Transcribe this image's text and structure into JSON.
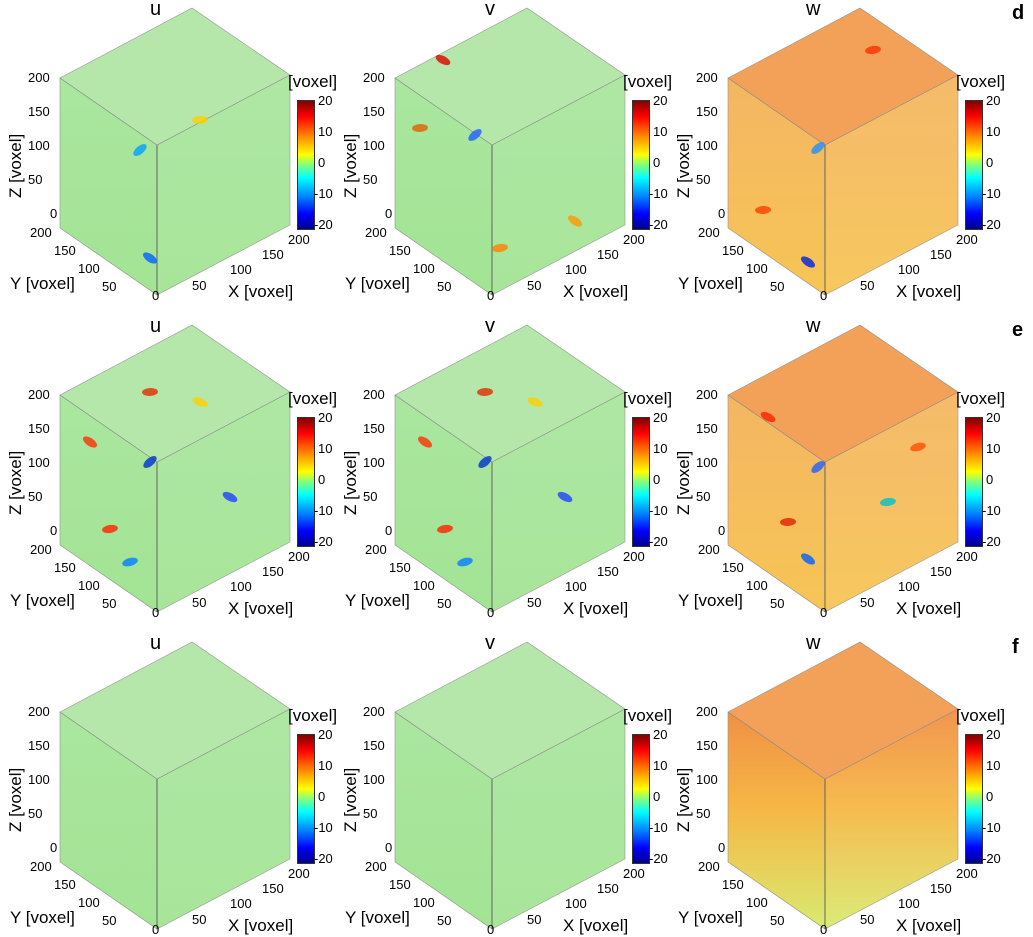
{
  "rows": [
    {
      "label": "d",
      "panels": [
        {
          "title": "u",
          "field": "uniform-low",
          "tone": "green"
        },
        {
          "title": "v",
          "field": "sparse",
          "tone": "green"
        },
        {
          "title": "w",
          "field": "sparse-warm",
          "tone": "orange"
        }
      ]
    },
    {
      "label": "e",
      "panels": [
        {
          "title": "u",
          "field": "dense",
          "tone": "green"
        },
        {
          "title": "v",
          "field": "dense",
          "tone": "green"
        },
        {
          "title": "w",
          "field": "dense-warm",
          "tone": "orange"
        }
      ]
    },
    {
      "label": "f",
      "panels": [
        {
          "title": "u",
          "field": "flat",
          "tone": "green"
        },
        {
          "title": "v",
          "field": "flat",
          "tone": "green"
        },
        {
          "title": "w",
          "field": "gradient-warm",
          "tone": "orange"
        }
      ]
    }
  ],
  "axes": {
    "z_label": "Z [voxel]",
    "y_label": "Y [voxel]",
    "x_label": "X [voxel]",
    "z_ticks": [
      "200",
      "150",
      "100",
      "50",
      "0"
    ],
    "y_ticks": [
      "200",
      "150",
      "100",
      "50"
    ],
    "x_ticks": [
      "0",
      "50",
      "100",
      "150",
      "200"
    ]
  },
  "colorbar": {
    "title": "[voxel]",
    "ticks": [
      "20",
      "10",
      "0",
      "-10",
      "-20"
    ],
    "range": [
      -20,
      20
    ],
    "colormap": "jet"
  }
}
